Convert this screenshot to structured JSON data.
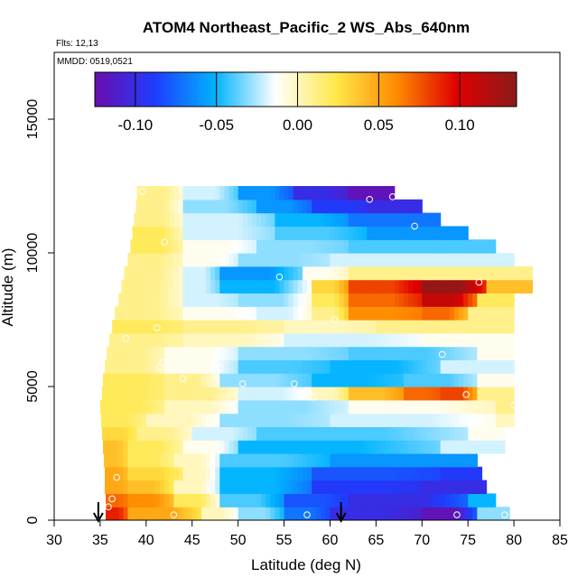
{
  "chart_data": {
    "type": "heatmap",
    "title": "ATOM4 Northeast_Pacific_2 WS_Abs_640nm",
    "flights_note": "Flts: 12,13",
    "dates_note": "MMDD: 0519,0521",
    "xlabel": "Latitude (deg N)",
    "ylabel": "Altitude (m)",
    "xlim": [
      30,
      85
    ],
    "ylim": [
      0,
      17500
    ],
    "xticks": [
      30,
      35,
      40,
      45,
      50,
      55,
      60,
      65,
      70,
      75,
      80,
      85
    ],
    "yticks": [
      0,
      5000,
      10000,
      15000
    ],
    "colorbar": {
      "range": [
        -0.125,
        0.135
      ],
      "ticks": [
        -0.1,
        -0.05,
        0.0,
        0.05,
        0.1
      ],
      "tick_labels": [
        "-0.10",
        "-0.05",
        "0.00",
        "0.05",
        "0.10"
      ],
      "colors": [
        "#6a0dad",
        "#1e3cff",
        "#00b4ff",
        "#ffffff",
        "#ffe84a",
        "#ff8c00",
        "#e00000",
        "#8b1a1a"
      ]
    },
    "arrows_latitude": [
      34.8,
      61.2
    ],
    "altitude_bands": [
      {
        "alt": 250,
        "segments": [
          [
            35.6,
            38,
            0.09
          ],
          [
            38,
            46,
            0.05
          ],
          [
            46,
            50,
            0.0
          ],
          [
            50,
            55,
            -0.03
          ],
          [
            55,
            60,
            -0.07
          ],
          [
            60,
            70,
            -0.1
          ],
          [
            70,
            76,
            -0.12
          ],
          [
            76,
            79.5,
            -0.03
          ]
        ]
      },
      {
        "alt": 750,
        "segments": [
          [
            35.6,
            38,
            0.07
          ],
          [
            38,
            43,
            0.06
          ],
          [
            43,
            48,
            0.02
          ],
          [
            48,
            55,
            -0.04
          ],
          [
            55,
            62,
            -0.08
          ],
          [
            62,
            75,
            -0.1
          ],
          [
            75,
            78,
            -0.05
          ]
        ]
      },
      {
        "alt": 1250,
        "segments": [
          [
            35.5,
            38,
            0.05
          ],
          [
            38,
            43,
            0.04
          ],
          [
            43,
            48,
            0.0
          ],
          [
            48,
            58,
            -0.05
          ],
          [
            58,
            70,
            -0.09
          ],
          [
            70,
            77,
            -0.1
          ]
        ]
      },
      {
        "alt": 1750,
        "segments": [
          [
            35.5,
            38,
            0.05
          ],
          [
            38,
            44,
            0.03
          ],
          [
            44,
            48,
            0.0
          ],
          [
            48,
            58,
            -0.05
          ],
          [
            58,
            72,
            -0.08
          ],
          [
            72,
            76.5,
            -0.09
          ]
        ]
      },
      {
        "alt": 2250,
        "segments": [
          [
            35.4,
            38,
            0.04
          ],
          [
            38,
            43,
            0.02
          ],
          [
            43,
            48,
            0.0
          ],
          [
            48,
            60,
            -0.04
          ],
          [
            60,
            76,
            -0.06
          ]
        ]
      },
      {
        "alt": 2750,
        "segments": [
          [
            35.3,
            38,
            0.04
          ],
          [
            38,
            44,
            0.02
          ],
          [
            44,
            50,
            -0.01
          ],
          [
            50,
            72,
            -0.05
          ],
          [
            72,
            79,
            -0.02
          ]
        ]
      },
      {
        "alt": 3250,
        "segments": [
          [
            35.2,
            39,
            0.03
          ],
          [
            39,
            45,
            0.01
          ],
          [
            45,
            52,
            -0.02
          ],
          [
            52,
            75,
            -0.04
          ],
          [
            75,
            79,
            -0.01
          ]
        ]
      },
      {
        "alt": 3750,
        "segments": [
          [
            35.1,
            40,
            0.02
          ],
          [
            40,
            48,
            0.0
          ],
          [
            48,
            60,
            -0.03
          ],
          [
            60,
            78,
            -0.02
          ],
          [
            78,
            80,
            0.0
          ]
        ]
      },
      {
        "alt": 4250,
        "segments": [
          [
            35.0,
            42,
            0.02
          ],
          [
            42,
            50,
            0.0
          ],
          [
            50,
            62,
            -0.03
          ],
          [
            62,
            78,
            -0.01
          ],
          [
            78,
            80,
            0.01
          ]
        ]
      },
      {
        "alt": 4750,
        "segments": [
          [
            35.2,
            42,
            0.02
          ],
          [
            42,
            50,
            0.01
          ],
          [
            50,
            58,
            -0.02
          ],
          [
            58,
            62,
            0.0
          ],
          [
            62,
            68,
            0.04
          ],
          [
            68,
            72,
            0.07
          ],
          [
            72,
            76,
            0.08
          ],
          [
            76,
            80,
            0.01
          ]
        ]
      },
      {
        "alt": 5250,
        "segments": [
          [
            35.3,
            42,
            0.02
          ],
          [
            42,
            48,
            0.01
          ],
          [
            48,
            58,
            -0.03
          ],
          [
            58,
            68,
            -0.05
          ],
          [
            68,
            76,
            -0.04
          ],
          [
            76,
            80,
            -0.01
          ]
        ]
      },
      {
        "alt": 5750,
        "segments": [
          [
            35.5,
            42,
            0.01
          ],
          [
            42,
            50,
            -0.01
          ],
          [
            50,
            60,
            -0.04
          ],
          [
            60,
            72,
            -0.05
          ],
          [
            72,
            80,
            -0.02
          ]
        ]
      },
      {
        "alt": 6250,
        "segments": [
          [
            35.7,
            42,
            0.01
          ],
          [
            42,
            50,
            -0.01
          ],
          [
            50,
            62,
            -0.03
          ],
          [
            62,
            76,
            -0.04
          ],
          [
            76,
            80,
            -0.01
          ]
        ]
      },
      {
        "alt": 6750,
        "segments": [
          [
            36.0,
            44,
            0.01
          ],
          [
            44,
            55,
            0.0
          ],
          [
            55,
            70,
            -0.02
          ],
          [
            70,
            80,
            -0.01
          ]
        ]
      },
      {
        "alt": 7250,
        "segments": [
          [
            36.3,
            44,
            0.02
          ],
          [
            44,
            55,
            0.01
          ],
          [
            55,
            65,
            0.0
          ],
          [
            65,
            80,
            0.01
          ]
        ]
      },
      {
        "alt": 7750,
        "segments": [
          [
            36.6,
            44,
            0.01
          ],
          [
            44,
            52,
            -0.01
          ],
          [
            52,
            58,
            -0.02
          ],
          [
            58,
            62,
            0.01
          ],
          [
            62,
            70,
            0.06
          ],
          [
            70,
            75,
            0.07
          ],
          [
            75,
            80,
            0.01
          ]
        ]
      },
      {
        "alt": 8250,
        "segments": [
          [
            37.0,
            44,
            0.01
          ],
          [
            44,
            50,
            -0.02
          ],
          [
            50,
            58,
            -0.03
          ],
          [
            58,
            62,
            0.02
          ],
          [
            62,
            70,
            0.07
          ],
          [
            70,
            76,
            0.11
          ],
          [
            76,
            80,
            0.02
          ]
        ]
      },
      {
        "alt": 8750,
        "segments": [
          [
            37.3,
            44,
            0.01
          ],
          [
            44,
            48,
            -0.02
          ],
          [
            48,
            58,
            -0.05
          ],
          [
            58,
            62,
            0.03
          ],
          [
            62,
            70,
            0.08
          ],
          [
            70,
            77,
            0.13
          ],
          [
            77,
            82,
            0.04
          ]
        ]
      },
      {
        "alt": 9250,
        "segments": [
          [
            37.6,
            44,
            0.01
          ],
          [
            44,
            48,
            -0.02
          ],
          [
            48,
            57,
            -0.06
          ],
          [
            57,
            62,
            -0.01
          ],
          [
            62,
            82,
            0.01
          ]
        ]
      },
      {
        "alt": 9750,
        "segments": [
          [
            38.0,
            44,
            0.01
          ],
          [
            44,
            50,
            -0.01
          ],
          [
            50,
            60,
            -0.03
          ],
          [
            60,
            80,
            -0.02
          ]
        ]
      },
      {
        "alt": 10250,
        "segments": [
          [
            38.3,
            44,
            0.02
          ],
          [
            44,
            52,
            -0.01
          ],
          [
            52,
            62,
            -0.03
          ],
          [
            62,
            78,
            -0.04
          ]
        ]
      },
      {
        "alt": 10750,
        "segments": [
          [
            38.5,
            44,
            0.02
          ],
          [
            44,
            54,
            -0.02
          ],
          [
            54,
            64,
            -0.04
          ],
          [
            64,
            75,
            -0.06
          ]
        ]
      },
      {
        "alt": 11250,
        "segments": [
          [
            38.7,
            44,
            0.01
          ],
          [
            44,
            54,
            -0.02
          ],
          [
            54,
            62,
            -0.05
          ],
          [
            62,
            72,
            -0.07
          ]
        ]
      },
      {
        "alt": 11750,
        "segments": [
          [
            38.9,
            44,
            0.01
          ],
          [
            44,
            52,
            -0.03
          ],
          [
            52,
            58,
            -0.06
          ],
          [
            58,
            64,
            -0.09
          ],
          [
            64,
            70,
            -0.1
          ]
        ]
      },
      {
        "alt": 12250,
        "segments": [
          [
            39.0,
            44,
            0.01
          ],
          [
            44,
            50,
            -0.02
          ],
          [
            50,
            56,
            -0.06
          ],
          [
            56,
            62,
            -0.1
          ],
          [
            62,
            67,
            -0.12
          ]
        ]
      }
    ],
    "sample_points": [
      [
        35.9,
        500
      ],
      [
        36.3,
        800
      ],
      [
        36.8,
        1600
      ],
      [
        43,
        200
      ],
      [
        57.5,
        200
      ],
      [
        73.8,
        200
      ],
      [
        79,
        200
      ],
      [
        80,
        4300
      ],
      [
        74.8,
        4700
      ],
      [
        58.2,
        4600
      ],
      [
        56.1,
        5100
      ],
      [
        50.5,
        5100
      ],
      [
        44,
        5300
      ],
      [
        48,
        5700
      ],
      [
        41.5,
        5700
      ],
      [
        41.8,
        5900
      ],
      [
        72.2,
        6200
      ],
      [
        37.8,
        6800
      ],
      [
        41.2,
        7200
      ],
      [
        60.5,
        7500
      ],
      [
        76.2,
        8900
      ],
      [
        54.5,
        9100
      ],
      [
        42,
        10400
      ],
      [
        69.2,
        11000
      ],
      [
        64.3,
        12000
      ],
      [
        66.8,
        12100
      ],
      [
        39.6,
        12300
      ]
    ]
  }
}
